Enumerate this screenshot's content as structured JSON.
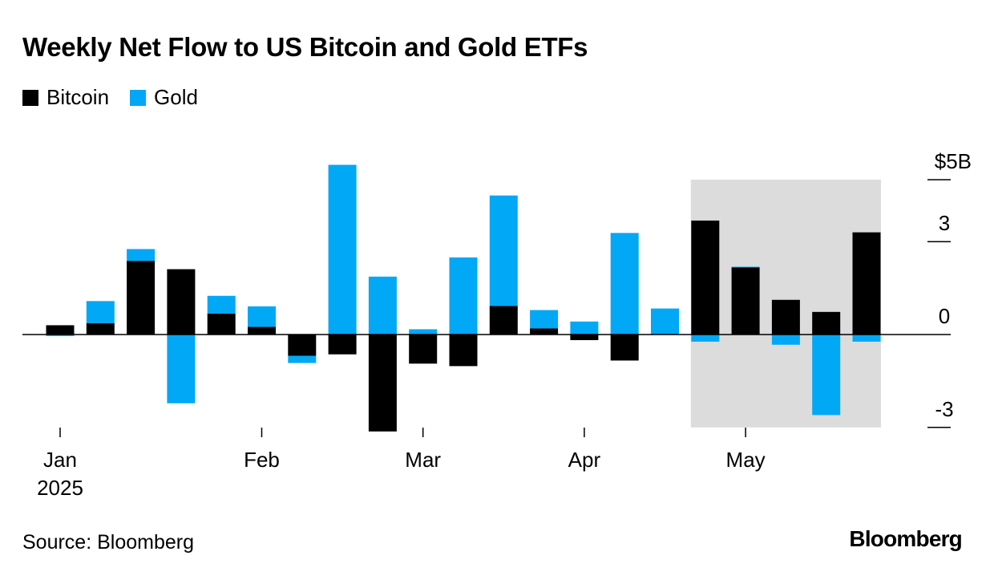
{
  "title": "Weekly Net Flow to US Bitcoin and Gold ETFs",
  "legend": [
    {
      "label": "Bitcoin",
      "color": "#000000"
    },
    {
      "label": "Gold",
      "color": "#00a8f6"
    }
  ],
  "source": "Source: Bloomberg",
  "brand": "Bloomberg",
  "chart_data": {
    "type": "bar",
    "stacked": true,
    "title": "Weekly Net Flow to US Bitcoin and Gold ETFs",
    "ylabel": "$5B",
    "ylim": [
      -3,
      5
    ],
    "y_ticks": [
      {
        "value": 5,
        "label": "$5B"
      },
      {
        "value": 3,
        "label": "3"
      },
      {
        "value": 0,
        "label": "0"
      },
      {
        "value": -3,
        "label": "-3"
      }
    ],
    "month_ticks": [
      {
        "index": 0,
        "label": "Jan",
        "sublabel": "2025"
      },
      {
        "index": 5,
        "label": "Feb"
      },
      {
        "index": 9,
        "label": "Mar"
      },
      {
        "index": 13,
        "label": "Apr"
      },
      {
        "index": 17,
        "label": "May"
      }
    ],
    "highlight_range": {
      "from_index": 16,
      "to_index": 20
    },
    "series": [
      {
        "name": "Bitcoin",
        "color": "#000000",
        "values": [
          0.3,
          0.37,
          2.38,
          2.11,
          0.68,
          0.25,
          -0.69,
          -0.64,
          -3.13,
          -0.94,
          -1.02,
          0.92,
          0.2,
          -0.18,
          -0.84,
          0.0,
          3.68,
          2.17,
          1.12,
          0.73,
          3.3
        ]
      },
      {
        "name": "Gold",
        "color": "#00a8f6",
        "values": [
          -0.05,
          0.71,
          0.38,
          -2.22,
          0.57,
          0.66,
          -0.23,
          5.48,
          1.87,
          0.17,
          2.49,
          3.57,
          0.59,
          0.42,
          3.28,
          0.84,
          -0.23,
          0.02,
          -0.33,
          -2.6,
          -0.23
        ]
      }
    ]
  }
}
